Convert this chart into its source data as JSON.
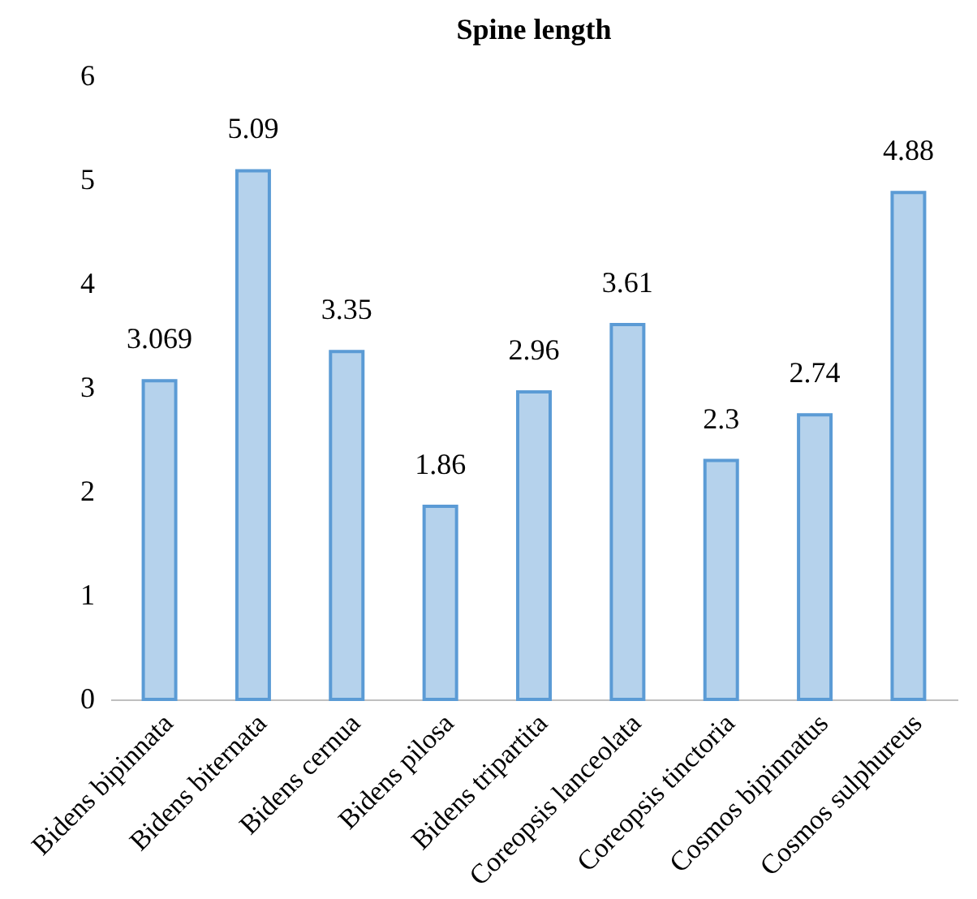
{
  "chart_data": {
    "type": "bar",
    "title": "Spine length",
    "categories": [
      "Bidens bipinnata",
      "Bidens biternata",
      "Bidens cernua",
      "Bidens pilosa",
      "Bidens tripartita",
      "Coreopsis lanceolata",
      "Coreopsis tinctoria",
      "Cosmos bipinnatus",
      "Cosmos sulphureus"
    ],
    "values": [
      3.069,
      5.09,
      3.35,
      1.86,
      2.96,
      3.61,
      2.3,
      2.74,
      4.88
    ],
    "color": "#5b9bd5",
    "ylim": [
      0,
      6
    ],
    "yticks": [
      0,
      1,
      2,
      3,
      4,
      5,
      6
    ],
    "data_labels": true,
    "grid": false
  }
}
